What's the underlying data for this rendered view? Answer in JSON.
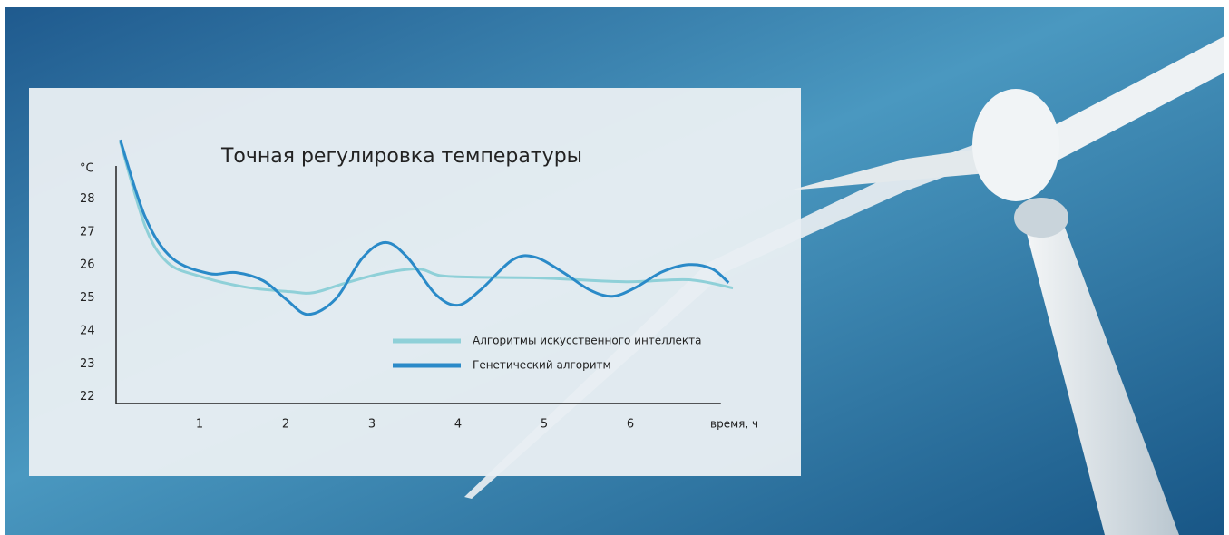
{
  "chart_data": {
    "type": "line",
    "title": "Точная регулировка температуры",
    "y_label": "°C",
    "x_label": "время, ч",
    "xlim": [
      0,
      7.05
    ],
    "ylim": [
      21.8,
      29.0
    ],
    "xticks": [
      1,
      2,
      3,
      4,
      5,
      6
    ],
    "yticks": [
      22,
      23,
      24,
      25,
      26,
      27,
      28
    ],
    "legend": "right",
    "series": [
      {
        "name": "Алгоритмы искусственного интеллекта",
        "color": "#8fd0d8",
        "x": [
          0.08,
          0.37,
          0.63,
          1.0,
          1.53,
          2.05,
          2.32,
          2.68,
          3.11,
          3.53,
          3.79,
          4.16,
          5.0,
          5.95,
          6.68,
          7.19
        ],
        "values": [
          29.73,
          27.17,
          26.07,
          25.66,
          25.33,
          25.19,
          25.16,
          25.44,
          25.74,
          25.88,
          25.68,
          25.63,
          25.6,
          25.49,
          25.55,
          25.3
        ]
      },
      {
        "name": "Генетический алгоритм",
        "color": "#2a8ac8",
        "x": [
          0.08,
          0.37,
          0.68,
          1.11,
          1.42,
          1.74,
          2.0,
          2.26,
          2.58,
          2.89,
          3.16,
          3.42,
          3.74,
          4.0,
          4.26,
          4.63,
          4.89,
          5.21,
          5.53,
          5.79,
          6.05,
          6.37,
          6.68,
          6.95,
          7.14
        ],
        "values": [
          29.79,
          27.45,
          26.21,
          25.74,
          25.77,
          25.52,
          24.97,
          24.5,
          24.97,
          26.21,
          26.68,
          26.21,
          25.11,
          24.78,
          25.24,
          26.15,
          26.24,
          25.79,
          25.24,
          25.05,
          25.3,
          25.79,
          26.01,
          25.88,
          25.46
        ]
      }
    ]
  }
}
